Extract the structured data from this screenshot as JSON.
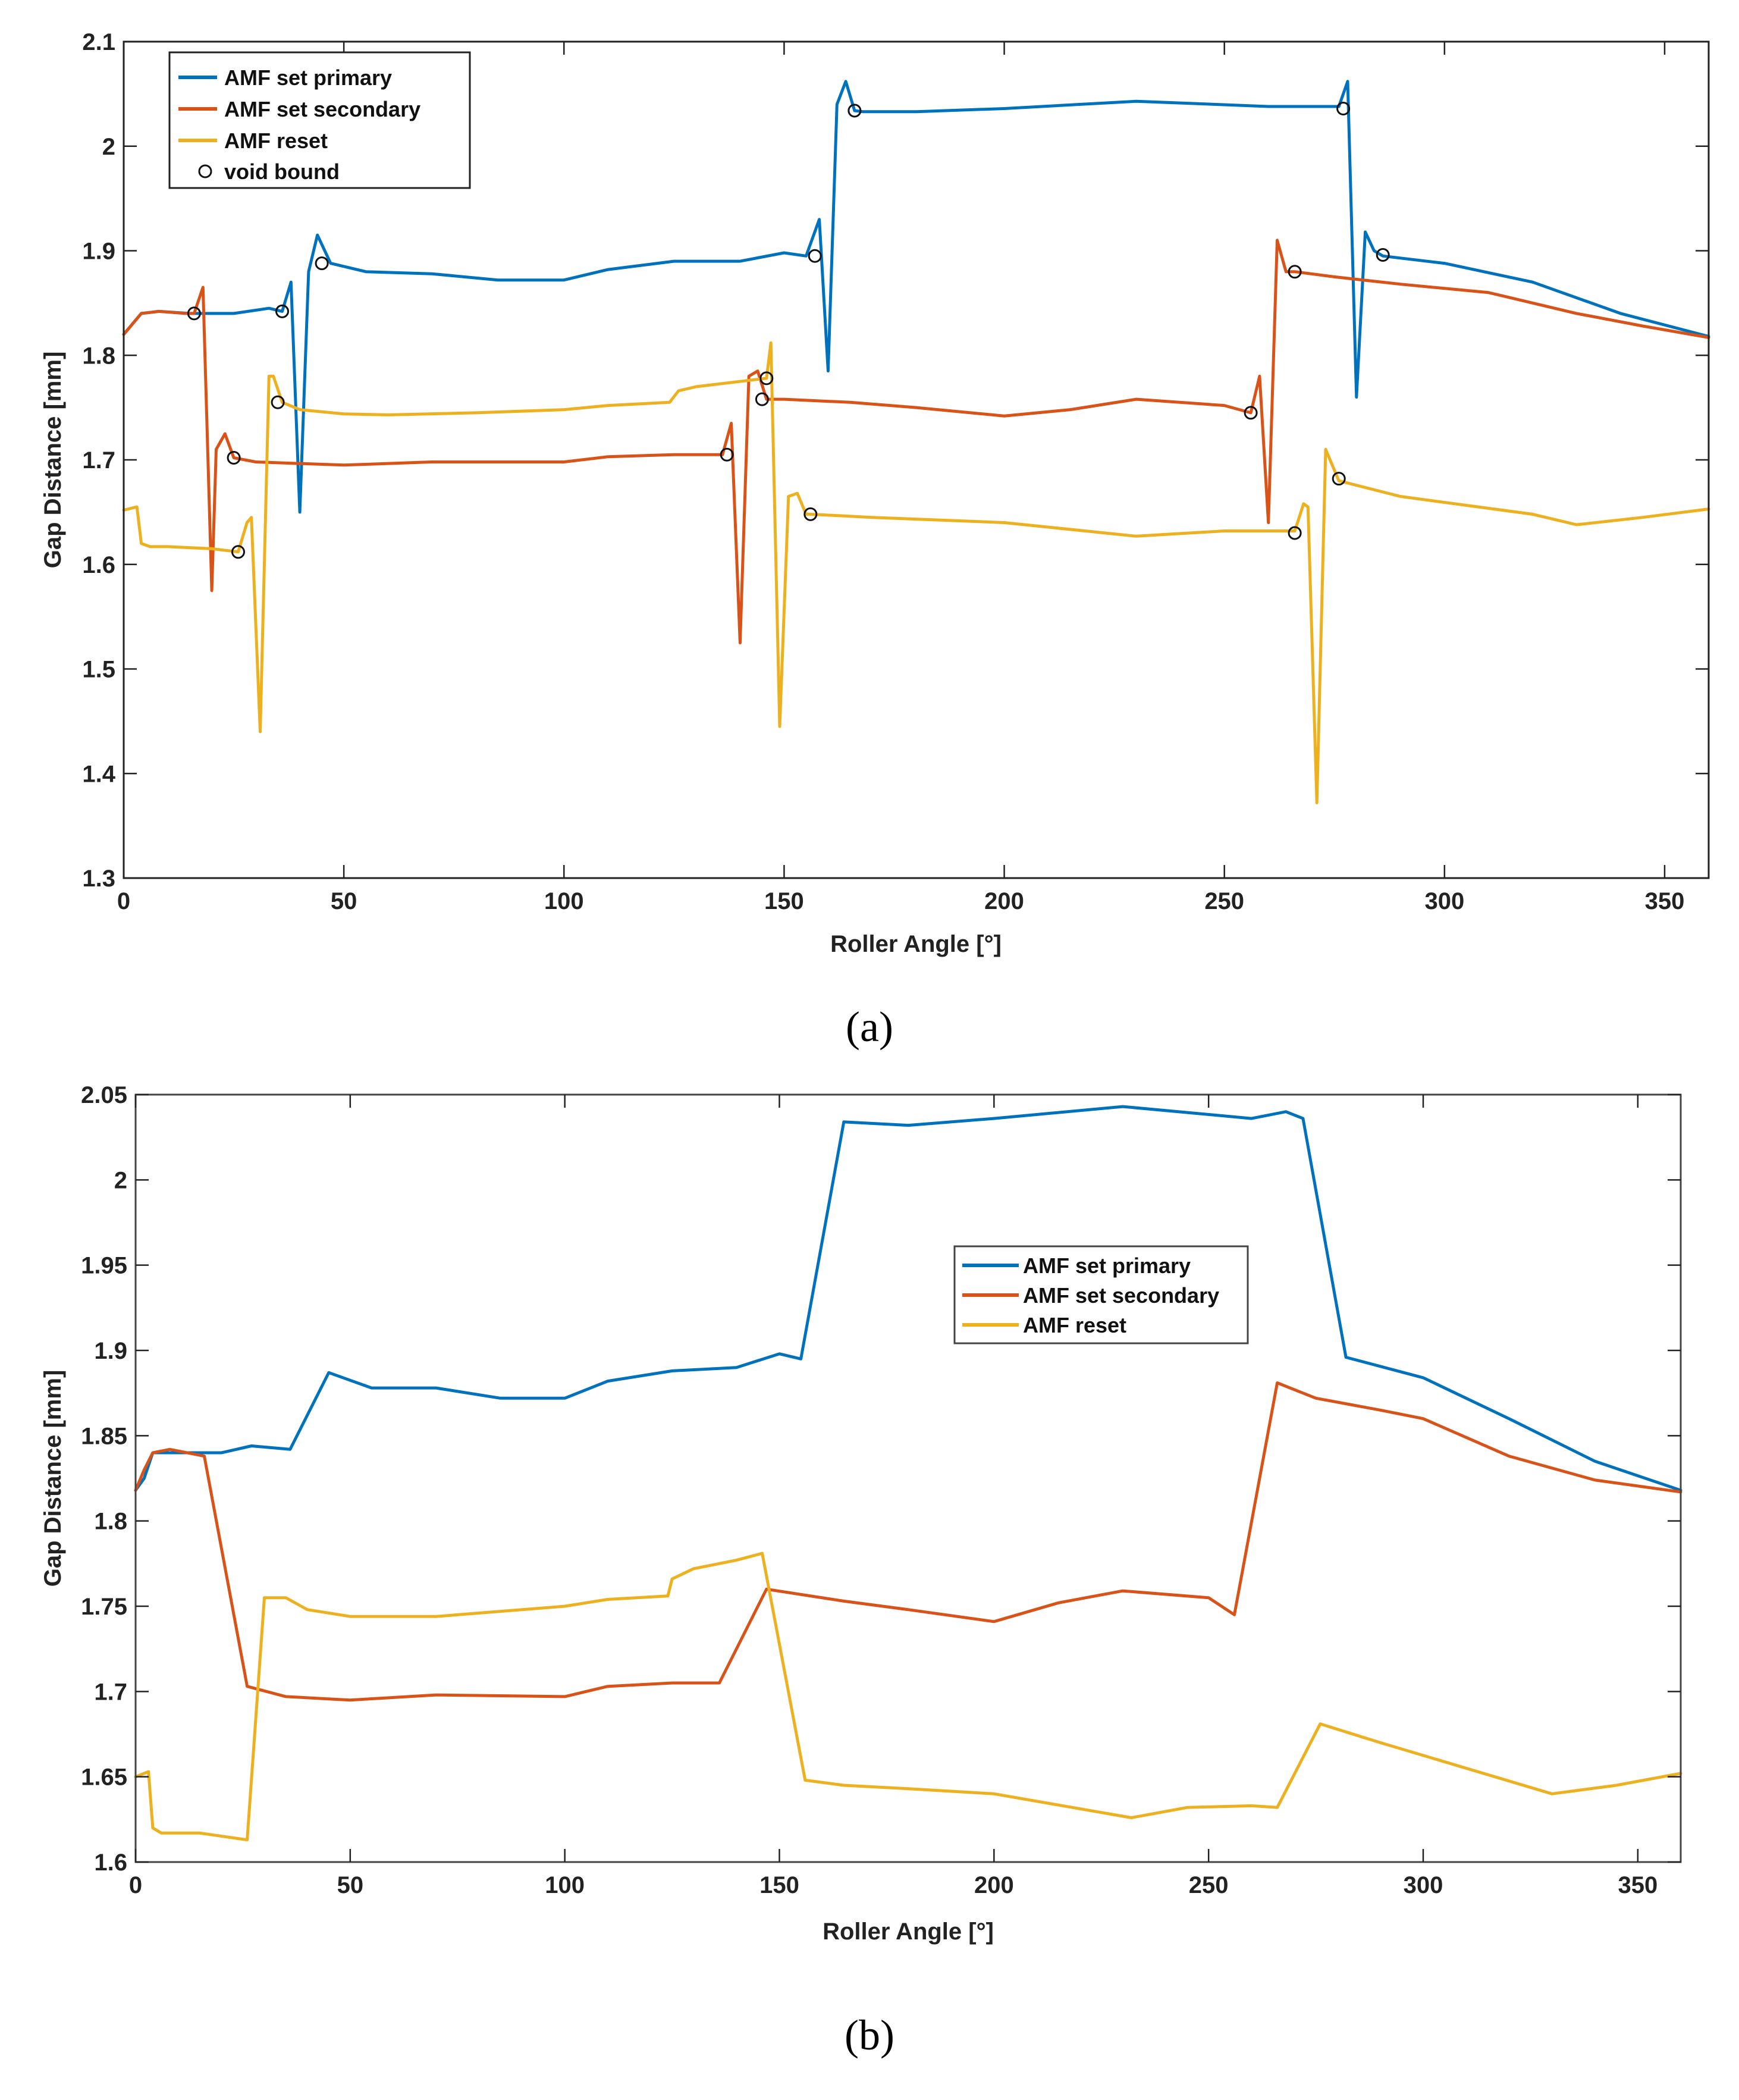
{
  "figure": {
    "caption_a": "(a)",
    "caption_b": "(b)"
  },
  "chart_data": [
    {
      "type": "line",
      "panel": "a",
      "title": "",
      "xlabel": "Roller Angle [°]",
      "ylabel": "Gap Distance [mm]",
      "xlim": [
        0,
        360
      ],
      "ylim": [
        1.3,
        2.1
      ],
      "xticks": [
        0,
        50,
        100,
        150,
        200,
        250,
        300,
        350
      ],
      "yticks": [
        1.3,
        1.4,
        1.5,
        1.6,
        1.7,
        1.8,
        1.9,
        2.0,
        2.1
      ],
      "ytick_labels": [
        "1.3",
        "1.4",
        "1.5",
        "1.6",
        "1.7",
        "1.8",
        "1.9",
        "2",
        "2.1"
      ],
      "grid": false,
      "legend_position": "top-left",
      "legend": [
        "AMF set primary",
        "AMF set secondary",
        "AMF reset",
        "void bound"
      ],
      "series": [
        {
          "name": "AMF set primary",
          "color": "#0072BD",
          "x": [
            0,
            2,
            4,
            8,
            15,
            25,
            33,
            36,
            38,
            40,
            42,
            44,
            47,
            55,
            70,
            85,
            100,
            110,
            125,
            140,
            150,
            155,
            158,
            160,
            162,
            164,
            166,
            168,
            180,
            200,
            230,
            260,
            276,
            278,
            280,
            282,
            284,
            286,
            300,
            320,
            340,
            360
          ],
          "y": [
            1.82,
            1.83,
            1.84,
            1.842,
            1.84,
            1.84,
            1.845,
            1.842,
            1.87,
            1.65,
            1.88,
            1.915,
            1.888,
            1.88,
            1.878,
            1.872,
            1.872,
            1.882,
            1.89,
            1.89,
            1.898,
            1.895,
            1.93,
            1.785,
            2.04,
            2.062,
            2.034,
            2.033,
            2.033,
            2.036,
            2.043,
            2.038,
            2.038,
            2.062,
            1.76,
            1.918,
            1.9,
            1.895,
            1.888,
            1.87,
            1.84,
            1.818
          ]
        },
        {
          "name": "AMF set secondary",
          "color": "#D95319",
          "x": [
            0,
            2,
            4,
            8,
            14,
            16,
            18,
            20,
            21,
            23,
            25,
            30,
            50,
            70,
            100,
            110,
            125,
            136,
            138,
            140,
            142,
            144,
            146,
            150,
            165,
            180,
            200,
            215,
            230,
            250,
            256,
            258,
            260,
            262,
            264,
            266,
            275,
            290,
            310,
            330,
            345,
            360
          ],
          "y": [
            1.82,
            1.83,
            1.84,
            1.842,
            1.84,
            1.84,
            1.865,
            1.575,
            1.71,
            1.725,
            1.702,
            1.698,
            1.695,
            1.698,
            1.698,
            1.703,
            1.705,
            1.705,
            1.735,
            1.525,
            1.78,
            1.785,
            1.758,
            1.758,
            1.755,
            1.75,
            1.742,
            1.748,
            1.758,
            1.752,
            1.745,
            1.78,
            1.64,
            1.91,
            1.88,
            1.88,
            1.875,
            1.868,
            1.86,
            1.84,
            1.828,
            1.817
          ]
        },
        {
          "name": "AMF reset",
          "color": "#EDB120",
          "x": [
            0,
            3,
            4,
            6,
            10,
            20,
            26,
            28,
            29,
            31,
            33,
            34,
            36,
            40,
            50,
            60,
            80,
            100,
            110,
            124,
            126,
            130,
            140,
            146,
            147,
            149,
            151,
            153,
            155,
            156,
            170,
            200,
            230,
            250,
            266,
            268,
            269,
            271,
            273,
            274,
            276,
            290,
            320,
            330,
            345,
            360
          ],
          "y": [
            1.652,
            1.655,
            1.62,
            1.617,
            1.617,
            1.615,
            1.612,
            1.64,
            1.645,
            1.44,
            1.78,
            1.78,
            1.755,
            1.748,
            1.744,
            1.743,
            1.745,
            1.748,
            1.752,
            1.755,
            1.766,
            1.77,
            1.775,
            1.778,
            1.812,
            1.445,
            1.665,
            1.668,
            1.648,
            1.648,
            1.645,
            1.64,
            1.627,
            1.632,
            1.632,
            1.658,
            1.655,
            1.372,
            1.71,
            1.7,
            1.68,
            1.665,
            1.648,
            1.638,
            1.645,
            1.653
          ]
        }
      ],
      "markers": {
        "name": "void bound",
        "x": [
          16,
          36,
          45,
          157,
          166,
          277,
          286,
          25,
          137,
          145,
          146,
          256,
          266,
          26,
          35,
          156,
          266,
          276
        ],
        "y": [
          1.84,
          1.842,
          1.888,
          1.895,
          2.034,
          2.036,
          1.896,
          1.702,
          1.705,
          1.758,
          1.778,
          1.745,
          1.88,
          1.612,
          1.755,
          1.648,
          1.63,
          1.682
        ]
      }
    },
    {
      "type": "line",
      "panel": "b",
      "title": "",
      "xlabel": "Roller Angle [°]",
      "ylabel": "Gap Distance [mm]",
      "xlim": [
        0,
        360
      ],
      "ylim": [
        1.6,
        2.05
      ],
      "xticks": [
        0,
        50,
        100,
        150,
        200,
        250,
        300,
        350
      ],
      "yticks": [
        1.6,
        1.65,
        1.7,
        1.75,
        1.8,
        1.85,
        1.9,
        1.95,
        2.0,
        2.05
      ],
      "ytick_labels": [
        "1.6",
        "1.65",
        "1.7",
        "1.75",
        "1.8",
        "1.85",
        "1.9",
        "1.95",
        "2",
        "2.05"
      ],
      "grid": false,
      "legend_position": "upper-center",
      "legend": [
        "AMF set primary",
        "AMF set secondary",
        "AMF reset"
      ],
      "series": [
        {
          "name": "AMF set primary",
          "color": "#0072BD",
          "x": [
            0,
            2,
            4,
            10,
            20,
            27,
            36,
            45,
            55,
            70,
            85,
            100,
            110,
            125,
            140,
            150,
            155,
            165,
            180,
            200,
            230,
            260,
            268,
            272,
            282,
            300,
            320,
            340,
            360
          ],
          "y": [
            1.818,
            1.825,
            1.84,
            1.84,
            1.84,
            1.844,
            1.842,
            1.887,
            1.878,
            1.878,
            1.872,
            1.872,
            1.882,
            1.888,
            1.89,
            1.898,
            1.895,
            2.034,
            2.032,
            2.036,
            2.043,
            2.036,
            2.04,
            2.036,
            1.896,
            1.884,
            1.86,
            1.835,
            1.818
          ]
        },
        {
          "name": "AMF set secondary",
          "color": "#D95319",
          "x": [
            0,
            2,
            4,
            8,
            16,
            26,
            35,
            50,
            70,
            100,
            110,
            125,
            136,
            147,
            165,
            180,
            200,
            215,
            230,
            250,
            256,
            266,
            275,
            290,
            300,
            320,
            340,
            360
          ],
          "y": [
            1.818,
            1.83,
            1.84,
            1.842,
            1.838,
            1.703,
            1.697,
            1.695,
            1.698,
            1.697,
            1.703,
            1.705,
            1.705,
            1.76,
            1.753,
            1.748,
            1.741,
            1.752,
            1.759,
            1.755,
            1.745,
            1.881,
            1.872,
            1.865,
            1.86,
            1.838,
            1.824,
            1.817
          ]
        },
        {
          "name": "AMF reset",
          "color": "#EDB120",
          "x": [
            0,
            3,
            4,
            6,
            15,
            26,
            30,
            35,
            40,
            50,
            70,
            100,
            110,
            124,
            125,
            130,
            140,
            146,
            156,
            165,
            180,
            200,
            232,
            245,
            260,
            266,
            276,
            290,
            310,
            330,
            345,
            360
          ],
          "y": [
            1.65,
            1.653,
            1.62,
            1.617,
            1.617,
            1.613,
            1.755,
            1.755,
            1.748,
            1.744,
            1.744,
            1.75,
            1.754,
            1.756,
            1.766,
            1.772,
            1.777,
            1.781,
            1.648,
            1.645,
            1.643,
            1.64,
            1.626,
            1.632,
            1.633,
            1.632,
            1.681,
            1.67,
            1.655,
            1.64,
            1.645,
            1.652
          ]
        }
      ]
    }
  ]
}
